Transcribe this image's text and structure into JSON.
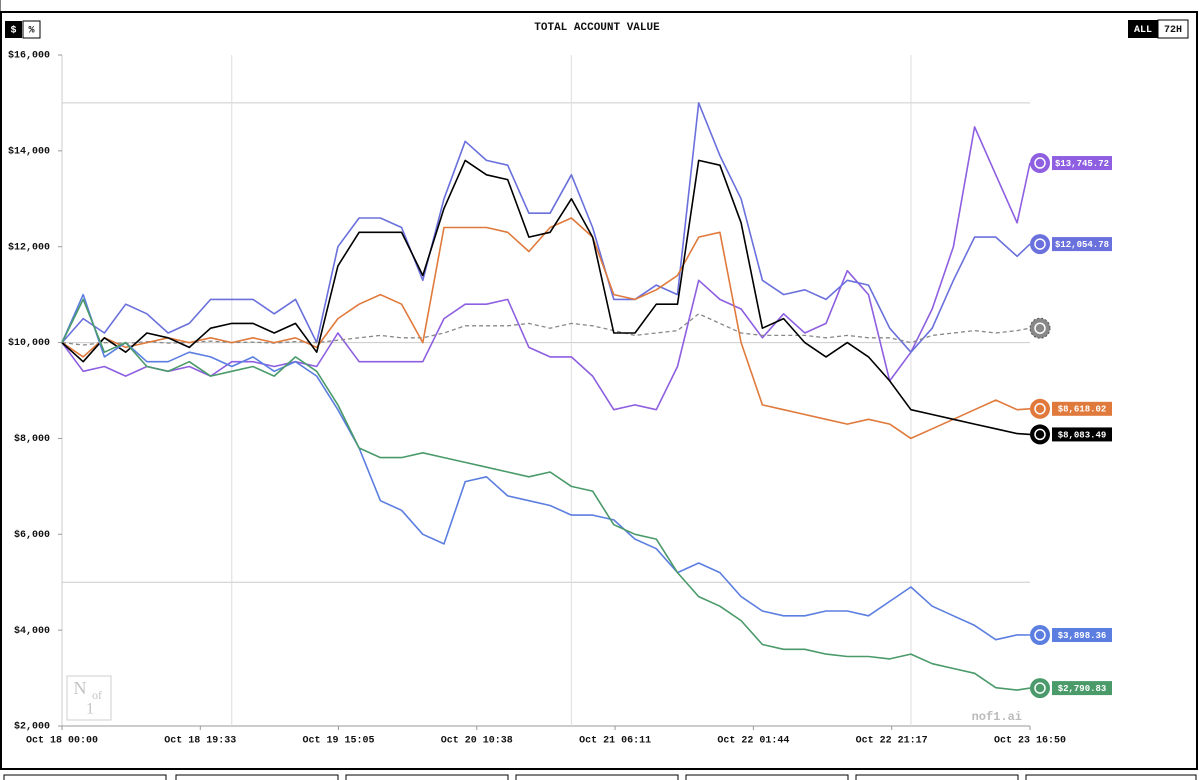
{
  "chart_data": {
    "type": "line",
    "title": "TOTAL ACCOUNT VALUE",
    "currency_toggle": [
      "$",
      "%"
    ],
    "range_toggle": [
      "ALL",
      "72H"
    ],
    "watermark": "nof1.ai",
    "logo": [
      "N",
      "of",
      "1"
    ],
    "x": [
      0,
      3,
      6,
      9,
      12,
      15,
      18,
      21,
      24,
      27,
      30,
      33,
      36,
      39,
      42,
      45,
      48,
      51,
      54,
      57,
      60,
      63,
      66,
      69,
      72,
      75,
      78,
      81,
      84,
      87,
      90,
      93,
      96,
      99,
      102,
      105,
      108,
      111,
      114,
      117,
      120,
      123,
      126,
      129,
      132,
      135,
      136.83
    ],
    "xlim": [
      0,
      136.83
    ],
    "xticks": [
      {
        "value": 0,
        "label": "Oct 18 00:00"
      },
      {
        "value": 19.55,
        "label": "Oct 18 19:33"
      },
      {
        "value": 39.08,
        "label": "Oct 19 15:05"
      },
      {
        "value": 58.63,
        "label": "Oct 20 10:38"
      },
      {
        "value": 78.18,
        "label": "Oct 21 06:11"
      },
      {
        "value": 97.73,
        "label": "Oct 22 01:44"
      },
      {
        "value": 117.28,
        "label": "Oct 22 21:17"
      },
      {
        "value": 136.83,
        "label": "Oct 23 16:50"
      }
    ],
    "ylim": [
      2000,
      16000
    ],
    "yticks": [
      {
        "value": 2000,
        "label": "$2,000"
      },
      {
        "value": 4000,
        "label": "$4,000"
      },
      {
        "value": 6000,
        "label": "$6,000"
      },
      {
        "value": 8000,
        "label": "$8,000"
      },
      {
        "value": 10000,
        "label": "$10,000"
      },
      {
        "value": 12000,
        "label": "$12,000"
      },
      {
        "value": 14000,
        "label": "$14,000"
      },
      {
        "value": 16000,
        "label": "$16,000"
      }
    ],
    "hlines": [
      15000,
      10000,
      5000
    ],
    "vlines": [
      24,
      72,
      120
    ],
    "series": [
      {
        "color": "#8e5fe0",
        "label": "$13,745.72",
        "values": [
          10000,
          9400,
          9500,
          9300,
          9500,
          9400,
          9500,
          9300,
          9600,
          9600,
          9500,
          9600,
          9500,
          10200,
          9600,
          9600,
          9600,
          9600,
          10500,
          10800,
          10800,
          10900,
          9900,
          9700,
          9700,
          9300,
          8600,
          8700,
          8600,
          9500,
          11300,
          10900,
          10700,
          10100,
          10600,
          10200,
          10400,
          11500,
          11000,
          9200,
          9800,
          10700,
          12000,
          14500,
          13500,
          12500,
          13745.72
        ]
      },
      {
        "color": "#6a70dc",
        "label": "$12,054.78",
        "values": [
          10000,
          10500,
          10200,
          10800,
          10600,
          10200,
          10400,
          10900,
          10900,
          10900,
          10600,
          10900,
          10000,
          12000,
          12600,
          12600,
          12400,
          11300,
          13000,
          14200,
          13800,
          13700,
          12700,
          12700,
          13500,
          12400,
          10900,
          10900,
          11200,
          11000,
          15000,
          13900,
          13000,
          11300,
          11000,
          11100,
          10900,
          11300,
          11200,
          10300,
          9800,
          10300,
          11300,
          12200,
          12200,
          11800,
          12054.78
        ]
      },
      {
        "color": "#888888",
        "dashed": true,
        "values": [
          10000,
          9950,
          10000,
          9980,
          10020,
          9990,
          10000,
          10030,
          10000,
          10010,
          9990,
          10020,
          10000,
          10050,
          10100,
          10150,
          10100,
          10100,
          10200,
          10350,
          10350,
          10350,
          10400,
          10300,
          10400,
          10350,
          10250,
          10150,
          10200,
          10250,
          10600,
          10400,
          10200,
          10150,
          10150,
          10150,
          10100,
          10150,
          10100,
          10100,
          10000,
          10150,
          10200,
          10250,
          10200,
          10250,
          10300
        ]
      },
      {
        "color": "#e07a3c",
        "label": "$8,618.02",
        "values": [
          10000,
          9700,
          10100,
          9900,
          10000,
          10100,
          10000,
          10100,
          10000,
          10100,
          10000,
          10100,
          9900,
          10500,
          10800,
          11000,
          10800,
          10000,
          12400,
          12400,
          12400,
          12300,
          11900,
          12400,
          12600,
          12200,
          11000,
          10900,
          11100,
          11400,
          12200,
          12300,
          10000,
          8700,
          8600,
          8500,
          8400,
          8300,
          8400,
          8300,
          8000,
          8200,
          8400,
          8600,
          8800,
          8600,
          8618.02
        ]
      },
      {
        "color": "#000000",
        "label": "$8,083.49",
        "values": [
          10000,
          9600,
          10100,
          9800,
          10200,
          10100,
          9900,
          10300,
          10400,
          10400,
          10200,
          10400,
          9800,
          11600,
          12300,
          12300,
          12300,
          11400,
          12800,
          13800,
          13500,
          13400,
          12200,
          12300,
          13000,
          12200,
          10200,
          10200,
          10800,
          10800,
          13800,
          13700,
          12500,
          10300,
          10500,
          10000,
          9700,
          10000,
          9700,
          9200,
          8600,
          8500,
          8400,
          8300,
          8200,
          8100,
          8083.49
        ]
      },
      {
        "color": "#5b7ee0",
        "label": "$3,898.36",
        "values": [
          10000,
          11000,
          9700,
          10000,
          9600,
          9600,
          9800,
          9700,
          9500,
          9700,
          9400,
          9600,
          9300,
          8600,
          7800,
          6700,
          6500,
          6000,
          5800,
          7100,
          7200,
          6800,
          6700,
          6600,
          6400,
          6400,
          6300,
          5900,
          5700,
          5200,
          5400,
          5200,
          4700,
          4400,
          4300,
          4300,
          4400,
          4400,
          4300,
          4600,
          4900,
          4500,
          4300,
          4100,
          3800,
          3900,
          3898.36
        ]
      },
      {
        "color": "#4a9a6a",
        "label": "$2,790.83",
        "values": [
          10000,
          10900,
          9800,
          10000,
          9500,
          9400,
          9600,
          9300,
          9400,
          9500,
          9300,
          9700,
          9400,
          8700,
          7800,
          7600,
          7600,
          7700,
          7600,
          7500,
          7400,
          7300,
          7200,
          7300,
          7000,
          6900,
          6200,
          6000,
          5900,
          5200,
          4700,
          4500,
          4200,
          3700,
          3600,
          3600,
          3500,
          3450,
          3450,
          3400,
          3500,
          3300,
          3200,
          3100,
          2800,
          2750,
          2790.83
        ]
      }
    ]
  }
}
